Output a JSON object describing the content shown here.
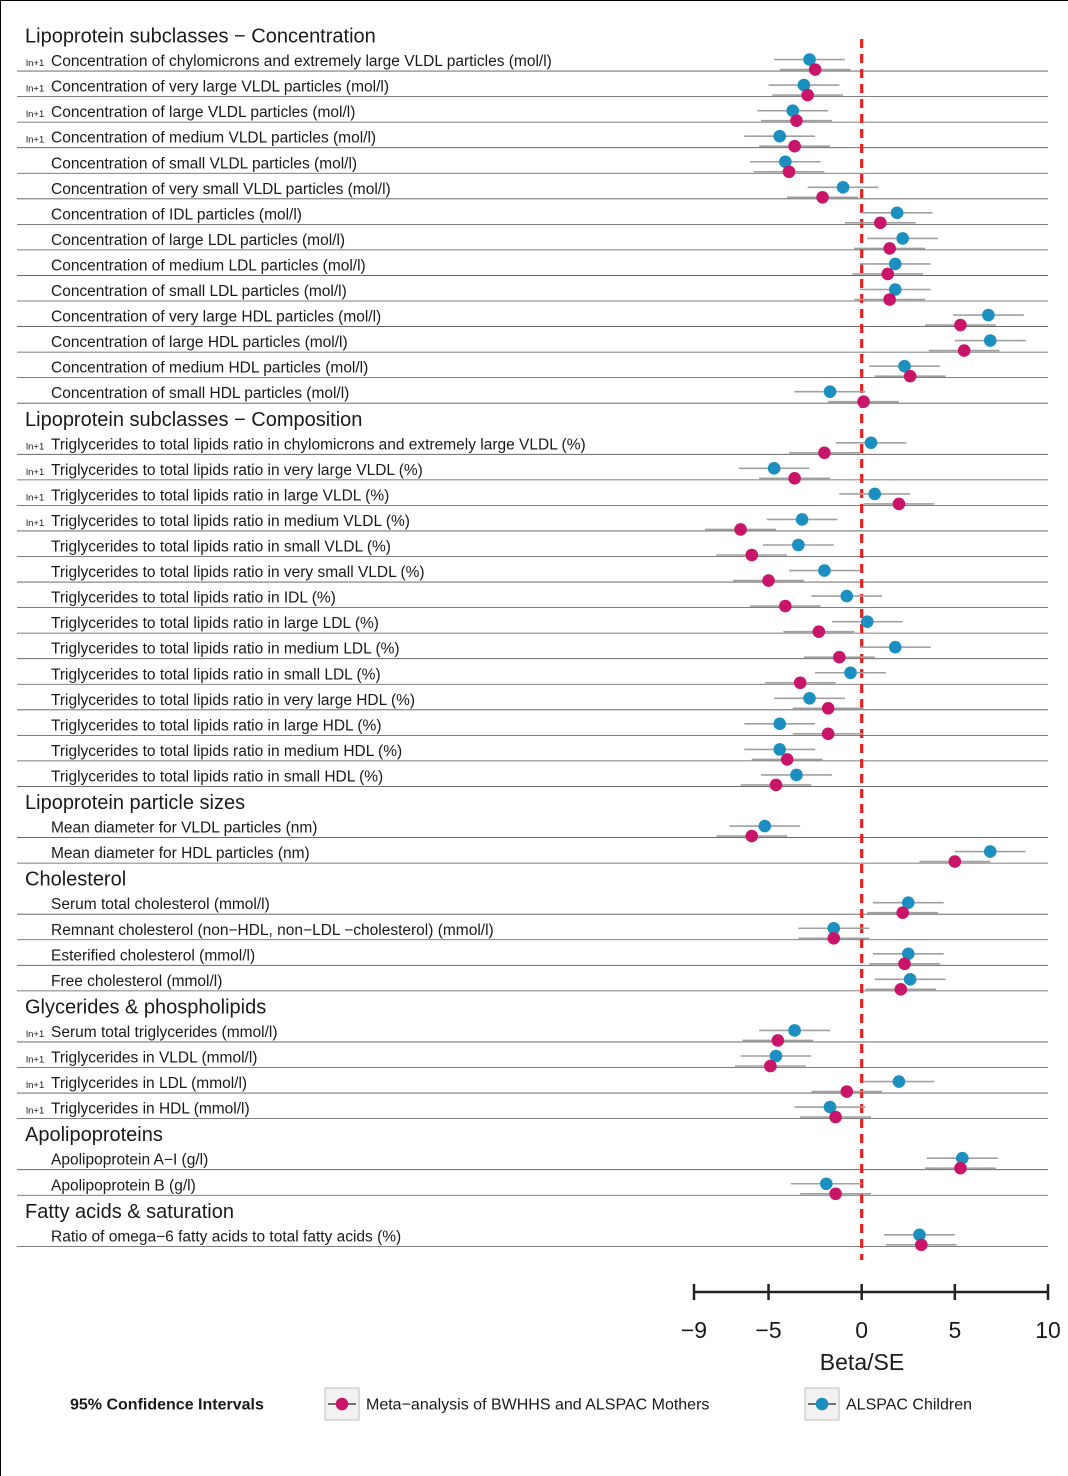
{
  "chart_data": {
    "type": "forest",
    "xlabel": "Beta/SE",
    "xlim": [
      -9,
      10
    ],
    "xticks": [
      -9,
      -5,
      0,
      5,
      10
    ],
    "reference_line": 0,
    "legend": {
      "title": "95% Confidence Intervals",
      "position": "bottom",
      "entries": [
        {
          "label": "Meta−analysis of BWHHS and ALSPAC Mothers",
          "color": "#c8156a"
        },
        {
          "label": "ALSPAC Children",
          "color": "#1a8fc0"
        }
      ]
    },
    "colors": {
      "meta": "#c8156a",
      "children": "#1a8fc0",
      "reference": "#e8201f",
      "ci": "#a0a0a0"
    },
    "ci_halfwidth": 1.9,
    "sections": [
      {
        "title": "Lipoprotein subclasses − Concentration",
        "rows": [
          {
            "label": "Concentration of chylomicrons and extremely large VLDL particles (mol/l)",
            "prefix": "ln+1",
            "children": -2.8,
            "meta": -2.5
          },
          {
            "label": "Concentration of very large VLDL particles (mol/l)",
            "prefix": "ln+1",
            "children": -3.1,
            "meta": -2.9
          },
          {
            "label": "Concentration of large VLDL particles (mol/l)",
            "prefix": "ln+1",
            "children": -3.7,
            "meta": -3.5
          },
          {
            "label": "Concentration of medium VLDL particles (mol/l)",
            "prefix": "ln+1",
            "children": -4.4,
            "meta": -3.6
          },
          {
            "label": "Concentration of small VLDL particles (mol/l)",
            "prefix": "",
            "children": -4.1,
            "meta": -3.9
          },
          {
            "label": "Concentration of very small VLDL particles (mol/l)",
            "prefix": "",
            "children": -1.0,
            "meta": -2.1
          },
          {
            "label": "Concentration of IDL particles (mol/l)",
            "prefix": "",
            "children": 1.9,
            "meta": 1.0
          },
          {
            "label": "Concentration of large LDL particles (mol/l)",
            "prefix": "",
            "children": 2.2,
            "meta": 1.5
          },
          {
            "label": "Concentration of medium LDL particles (mol/l)",
            "prefix": "",
            "children": 1.8,
            "meta": 1.4
          },
          {
            "label": "Concentration of small LDL particles (mol/l)",
            "prefix": "",
            "children": 1.8,
            "meta": 1.5
          },
          {
            "label": "Concentration of very large HDL particles (mol/l)",
            "prefix": "",
            "children": 6.8,
            "meta": 5.3
          },
          {
            "label": "Concentration of large HDL particles (mol/l)",
            "prefix": "",
            "children": 6.9,
            "meta": 5.5
          },
          {
            "label": "Concentration of medium HDL particles (mol/l)",
            "prefix": "",
            "children": 2.3,
            "meta": 2.6
          },
          {
            "label": "Concentration of small HDL particles (mol/l)",
            "prefix": "",
            "children": -1.7,
            "meta": 0.1
          }
        ]
      },
      {
        "title": "Lipoprotein subclasses − Composition",
        "rows": [
          {
            "label": "Triglycerides to total lipids ratio in chylomicrons and extremely large VLDL (%)",
            "prefix": "ln+1",
            "children": 0.5,
            "meta": -2.0
          },
          {
            "label": "Triglycerides to total lipids ratio in very large VLDL (%)",
            "prefix": "ln+1",
            "children": -4.7,
            "meta": -3.6
          },
          {
            "label": "Triglycerides to total lipids ratio in large VLDL (%)",
            "prefix": "ln+1",
            "children": 0.7,
            "meta": 2.0
          },
          {
            "label": "Triglycerides to total lipids ratio in medium VLDL (%)",
            "prefix": "ln+1",
            "children": -3.2,
            "meta": -6.5
          },
          {
            "label": "Triglycerides to total lipids ratio in small VLDL (%)",
            "prefix": "",
            "children": -3.4,
            "meta": -5.9
          },
          {
            "label": "Triglycerides to total lipids ratio in very small VLDL (%)",
            "prefix": "",
            "children": -2.0,
            "meta": -5.0
          },
          {
            "label": "Triglycerides to total lipids ratio in IDL (%)",
            "prefix": "",
            "children": -0.8,
            "meta": -4.1
          },
          {
            "label": "Triglycerides to total lipids ratio in large LDL (%)",
            "prefix": "",
            "children": 0.3,
            "meta": -2.3
          },
          {
            "label": "Triglycerides to total lipids ratio in medium LDL (%)",
            "prefix": "",
            "children": 1.8,
            "meta": -1.2
          },
          {
            "label": "Triglycerides to total lipids ratio in small LDL (%)",
            "prefix": "",
            "children": -0.6,
            "meta": -3.3
          },
          {
            "label": "Triglycerides to total lipids ratio in very large HDL (%)",
            "prefix": "",
            "children": -2.8,
            "meta": -1.8
          },
          {
            "label": "Triglycerides to total lipids ratio in large HDL (%)",
            "prefix": "",
            "children": -4.4,
            "meta": -1.8
          },
          {
            "label": "Triglycerides to total lipids ratio in medium HDL (%)",
            "prefix": "",
            "children": -4.4,
            "meta": -4.0
          },
          {
            "label": "Triglycerides to total lipids ratio in small HDL (%)",
            "prefix": "",
            "children": -3.5,
            "meta": -4.6
          }
        ]
      },
      {
        "title": "Lipoprotein particle sizes",
        "rows": [
          {
            "label": "Mean diameter for VLDL particles (nm)",
            "prefix": "",
            "children": -5.2,
            "meta": -5.9
          },
          {
            "label": "Mean diameter for HDL particles (nm)",
            "prefix": "",
            "children": 6.9,
            "meta": 5.0
          }
        ]
      },
      {
        "title": "Cholesterol",
        "rows": [
          {
            "label": "Serum total cholesterol (mmol/l)",
            "prefix": "",
            "children": 2.5,
            "meta": 2.2
          },
          {
            "label": "Remnant cholesterol (non−HDL, non−LDL −cholesterol) (mmol/l)",
            "prefix": "",
            "children": -1.5,
            "meta": -1.5
          },
          {
            "label": "Esterified cholesterol (mmol/l)",
            "prefix": "",
            "children": 2.5,
            "meta": 2.3
          },
          {
            "label": "Free cholesterol (mmol/l)",
            "prefix": "",
            "children": 2.6,
            "meta": 2.1
          }
        ]
      },
      {
        "title": "Glycerides & phospholipids",
        "rows": [
          {
            "label": "Serum total triglycerides (mmol/l)",
            "prefix": "ln+1",
            "children": -3.6,
            "meta": -4.5
          },
          {
            "label": "Triglycerides in VLDL (mmol/l)",
            "prefix": "ln+1",
            "children": -4.6,
            "meta": -4.9
          },
          {
            "label": "Triglycerides in LDL (mmol/l)",
            "prefix": "ln+1",
            "children": 2.0,
            "meta": -0.8
          },
          {
            "label": "Triglycerides in HDL (mmol/l)",
            "prefix": "ln+1",
            "children": -1.7,
            "meta": -1.4
          }
        ]
      },
      {
        "title": "Apolipoproteins",
        "rows": [
          {
            "label": "Apolipoprotein A−I (g/l)",
            "prefix": "",
            "children": 5.4,
            "meta": 5.3
          },
          {
            "label": "Apolipoprotein B (g/l)",
            "prefix": "",
            "children": -1.9,
            "meta": -1.4
          }
        ]
      },
      {
        "title": "Fatty acids & saturation",
        "rows": [
          {
            "label": "Ratio of omega−6 fatty acids to total fatty acids (%)",
            "prefix": "",
            "children": 3.1,
            "meta": 3.2
          }
        ]
      }
    ]
  }
}
